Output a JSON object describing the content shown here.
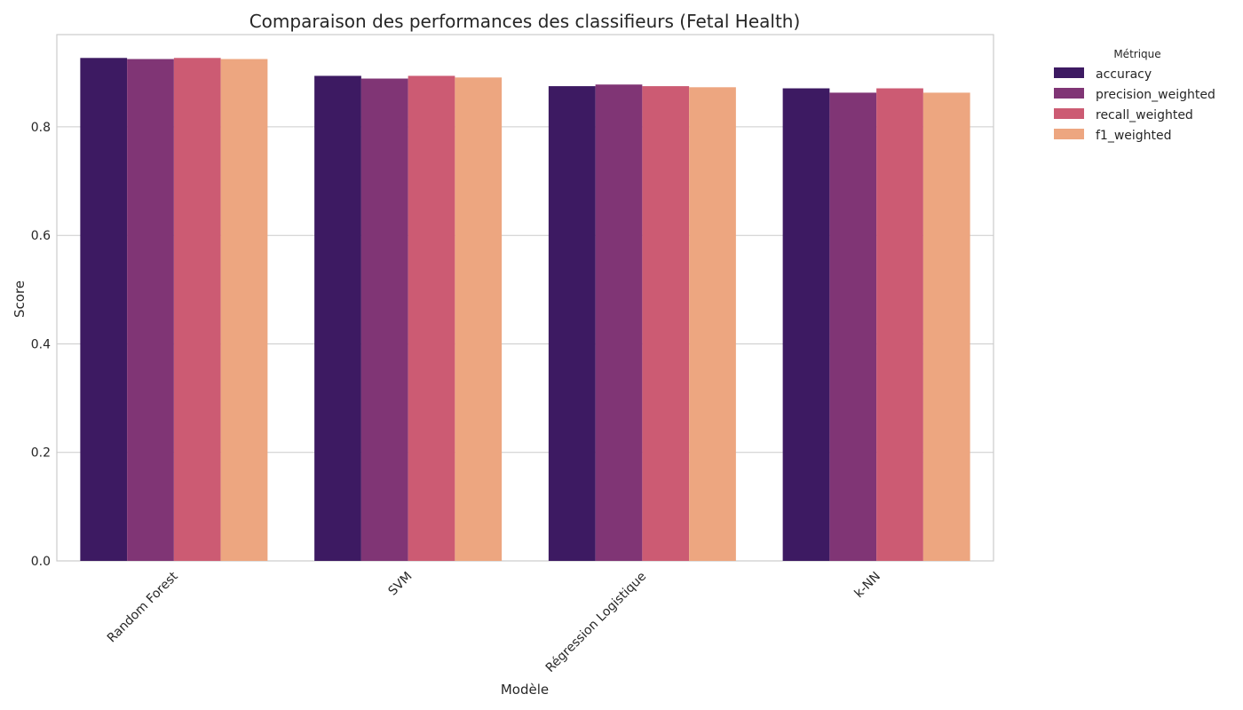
{
  "chart_data": {
    "type": "bar",
    "title": "Comparaison des performances des classifieurs (Fetal Health)",
    "xlabel": "Modèle",
    "ylabel": "Score",
    "ylim": [
      0,
      0.97
    ],
    "yticks": [
      "0.0",
      "0.2",
      "0.4",
      "0.6",
      "0.8"
    ],
    "grid": true,
    "legend_title": "Métrique",
    "legend_position": "outside-right",
    "categories": [
      "Random Forest",
      "SVM",
      "Régression Logistique",
      "k-NN"
    ],
    "series": [
      {
        "name": "accuracy",
        "color": "#3d1a62",
        "values": [
          0.927,
          0.894,
          0.875,
          0.871
        ]
      },
      {
        "name": "precision_weighted",
        "color": "#803575",
        "values": [
          0.925,
          0.889,
          0.878,
          0.863
        ]
      },
      {
        "name": "recall_weighted",
        "color": "#cc5b73",
        "values": [
          0.927,
          0.894,
          0.875,
          0.871
        ]
      },
      {
        "name": "f1_weighted",
        "color": "#eda680",
        "values": [
          0.925,
          0.891,
          0.873,
          0.863
        ]
      }
    ]
  }
}
